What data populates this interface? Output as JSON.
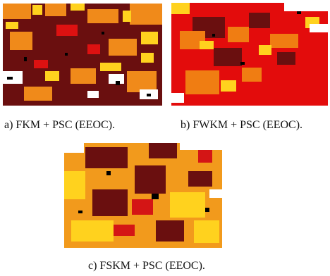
{
  "figure": {
    "panels": [
      {
        "caption": "a) FKM + PSC (EEOC).",
        "palette": {
          "dark_red": "#6a0f0f",
          "red": "#dd1111",
          "orange": "#f08a1a",
          "yellow": "#ffd21e",
          "white": "#ffffff",
          "black": "#000000"
        }
      },
      {
        "caption": "b) FWKM + PSC (EEOC).",
        "palette": {
          "dark_red": "#6a0f0f",
          "red": "#e30c0c",
          "orange": "#f07d12",
          "yellow": "#ffd21e",
          "white": "#ffffff",
          "black": "#000000"
        }
      },
      {
        "caption": "c) FSKM + PSC (EEOC).",
        "palette": {
          "dark_red": "#6a0f0f",
          "red": "#d41515",
          "orange": "#f29a1c",
          "yellow": "#ffd21e",
          "white": "#ffffff",
          "black": "#000000"
        }
      }
    ]
  }
}
